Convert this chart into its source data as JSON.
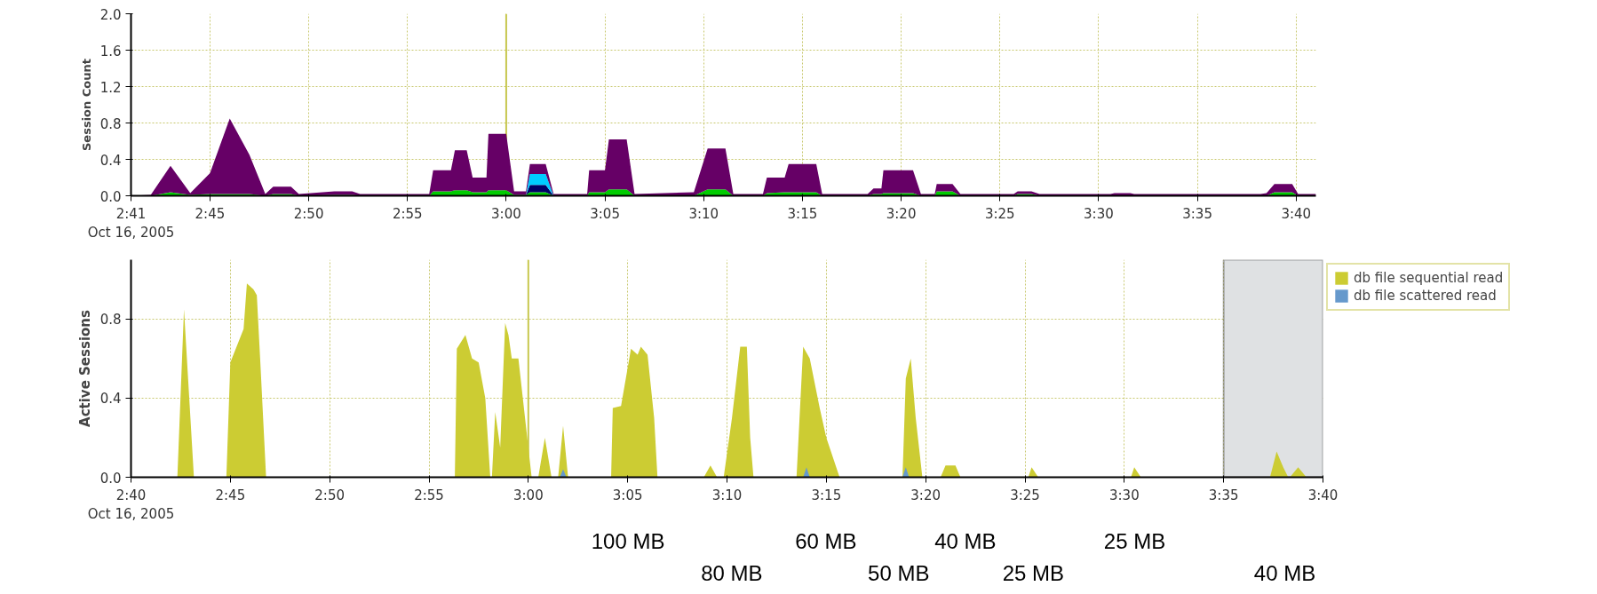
{
  "chart_data": [
    {
      "type": "area",
      "stacked": true,
      "ylabel": "Session Count",
      "grid": true,
      "legend": false,
      "xlim": [
        "2005-10-16T02:41:00",
        "2005-10-16T03:41:00"
      ],
      "xticks": [
        {
          "value": "2005-10-16T02:41:00",
          "label": "2:41\nOct 16, 2005"
        },
        {
          "value": "2005-10-16T02:45:00",
          "label": "2:45"
        },
        {
          "value": "2005-10-16T02:50:00",
          "label": "2:50"
        },
        {
          "value": "2005-10-16T02:55:00",
          "label": "2:55"
        },
        {
          "value": "2005-10-16T03:00:00",
          "label": "3:00"
        },
        {
          "value": "2005-10-16T03:05:00",
          "label": "3:05"
        },
        {
          "value": "2005-10-16T03:10:00",
          "label": "3:10"
        },
        {
          "value": "2005-10-16T03:15:00",
          "label": "3:15"
        },
        {
          "value": "2005-10-16T03:20:00",
          "label": "3:20"
        },
        {
          "value": "2005-10-16T03:25:00",
          "label": "3:25"
        },
        {
          "value": "2005-10-16T03:30:00",
          "label": "3:30"
        },
        {
          "value": "2005-10-16T03:35:00",
          "label": "3:35"
        },
        {
          "value": "2005-10-16T03:40:00",
          "label": "3:40"
        }
      ],
      "ylim": [
        0,
        2.0
      ],
      "yticks": [
        {
          "value": 0,
          "label": "0.0"
        },
        {
          "value": 0.4,
          "label": "0.4"
        },
        {
          "value": 0.8,
          "label": "0.8"
        },
        {
          "value": 1.2,
          "label": "1.2"
        },
        {
          "value": 1.6,
          "label": "1.6"
        },
        {
          "value": 2.0,
          "label": "2.0"
        }
      ],
      "ref_lines": [
        {
          "axis": "x",
          "value": "2005-10-16T03:00:00",
          "color": "#c8c850"
        }
      ],
      "x": [
        "2005-10-16T02:41:00",
        "2005-10-16T02:42:00",
        "2005-10-16T02:43:00",
        "2005-10-16T02:44:00",
        "2005-10-16T02:45:00",
        "2005-10-16T02:46:00",
        "2005-10-16T02:47:00",
        "2005-10-16T02:47:48",
        "2005-10-16T02:48:12",
        "2005-10-16T02:49:06",
        "2005-10-16T02:49:30",
        "2005-10-16T02:51:18",
        "2005-10-16T02:52:12",
        "2005-10-16T02:52:36",
        "2005-10-16T02:56:06",
        "2005-10-16T02:56:18",
        "2005-10-16T02:57:12",
        "2005-10-16T02:57:24",
        "2005-10-16T02:58:00",
        "2005-10-16T02:58:18",
        "2005-10-16T02:59:00",
        "2005-10-16T02:59:06",
        "2005-10-16T03:00:00",
        "2005-10-16T03:00:24",
        "2005-10-16T03:01:00",
        "2005-10-16T03:01:12",
        "2005-10-16T03:02:00",
        "2005-10-16T03:02:24",
        "2005-10-16T03:04:06",
        "2005-10-16T03:04:12",
        "2005-10-16T03:05:00",
        "2005-10-16T03:05:12",
        "2005-10-16T03:06:06",
        "2005-10-16T03:06:30",
        "2005-10-16T03:09:30",
        "2005-10-16T03:10:12",
        "2005-10-16T03:11:06",
        "2005-10-16T03:11:30",
        "2005-10-16T03:13:00",
        "2005-10-16T03:13:12",
        "2005-10-16T03:14:06",
        "2005-10-16T03:14:18",
        "2005-10-16T03:15:42",
        "2005-10-16T03:16:00",
        "2005-10-16T03:18:18",
        "2005-10-16T03:18:36",
        "2005-10-16T03:19:00",
        "2005-10-16T03:19:06",
        "2005-10-16T03:20:36",
        "2005-10-16T03:21:00",
        "2005-10-16T03:21:42",
        "2005-10-16T03:21:48",
        "2005-10-16T03:22:36",
        "2005-10-16T03:23:00",
        "2005-10-16T03:25:42",
        "2005-10-16T03:25:54",
        "2005-10-16T03:26:36",
        "2005-10-16T03:27:00",
        "2005-10-16T03:30:36",
        "2005-10-16T03:30:48",
        "2005-10-16T03:31:36",
        "2005-10-16T03:31:48",
        "2005-10-16T03:38:12",
        "2005-10-16T03:38:30",
        "2005-10-16T03:38:54",
        "2005-10-16T03:39:48",
        "2005-10-16T03:40:06",
        "2005-10-16T03:41:00"
      ],
      "series": [
        {
          "color": "#00cc00",
          "values": [
            0,
            0,
            0.04,
            0.01,
            0.02,
            0.02,
            0.02,
            0,
            0.02,
            0.02,
            0,
            0.01,
            0.01,
            0,
            0,
            0.05,
            0.05,
            0.06,
            0.06,
            0.04,
            0.04,
            0.06,
            0.06,
            0.01,
            0.01,
            0.04,
            0.04,
            0,
            0,
            0.04,
            0.04,
            0.07,
            0.07,
            0,
            0,
            0.07,
            0.07,
            0,
            0,
            0.03,
            0.04,
            0.04,
            0.04,
            0,
            0,
            0.02,
            0.02,
            0.03,
            0.03,
            0,
            0,
            0.05,
            0.05,
            0,
            0,
            0.02,
            0.02,
            0,
            0,
            0,
            0,
            0,
            0,
            0,
            0.04,
            0.04,
            0,
            0
          ]
        },
        {
          "color": "#000066",
          "values": [
            0,
            0,
            0,
            0,
            0,
            0,
            0,
            0,
            0,
            0,
            0,
            0,
            0,
            0,
            0,
            0,
            0,
            0,
            0,
            0,
            0,
            0,
            0,
            0,
            0,
            0.08,
            0.08,
            0,
            0,
            0,
            0,
            0,
            0,
            0,
            0,
            0,
            0,
            0,
            0,
            0,
            0,
            0,
            0,
            0,
            0,
            0,
            0,
            0,
            0,
            0,
            0,
            0,
            0,
            0,
            0,
            0,
            0,
            0,
            0,
            0,
            0,
            0,
            0,
            0,
            0,
            0,
            0,
            0
          ]
        },
        {
          "color": "#00ccff",
          "values": [
            0,
            0,
            0,
            0,
            0,
            0,
            0,
            0,
            0,
            0,
            0,
            0,
            0,
            0,
            0,
            0,
            0,
            0,
            0,
            0,
            0,
            0,
            0,
            0,
            0,
            0.12,
            0.12,
            0,
            0,
            0,
            0,
            0,
            0,
            0,
            0,
            0,
            0,
            0,
            0,
            0,
            0,
            0,
            0,
            0,
            0,
            0,
            0,
            0,
            0,
            0,
            0,
            0,
            0,
            0,
            0,
            0,
            0,
            0,
            0,
            0,
            0,
            0,
            0,
            0,
            0,
            0,
            0,
            0
          ]
        },
        {
          "color": "#660066",
          "values": [
            0,
            0.01,
            0.29,
            0.02,
            0.23,
            0.83,
            0.43,
            0.02,
            0.08,
            0.08,
            0.02,
            0.04,
            0.04,
            0.02,
            0.02,
            0.23,
            0.23,
            0.44,
            0.44,
            0.16,
            0.16,
            0.62,
            0.62,
            0.04,
            0.04,
            0.11,
            0.11,
            0.02,
            0.02,
            0.24,
            0.24,
            0.55,
            0.55,
            0.02,
            0.04,
            0.45,
            0.45,
            0.02,
            0.02,
            0.17,
            0.16,
            0.31,
            0.31,
            0.02,
            0.02,
            0.06,
            0.06,
            0.25,
            0.25,
            0.02,
            0.02,
            0.08,
            0.08,
            0.02,
            0.02,
            0.03,
            0.03,
            0.02,
            0.02,
            0.03,
            0.03,
            0.02,
            0.02,
            0.03,
            0.09,
            0.09,
            0.02,
            0.02
          ]
        }
      ]
    },
    {
      "type": "area",
      "ylabel": "Active Sessions",
      "grid": true,
      "legend": "right",
      "xlim": [
        "2005-10-16T02:40:00",
        "2005-10-16T03:40:00"
      ],
      "xticks": [
        {
          "value": "2005-10-16T02:40:00",
          "label": "2:40\nOct 16, 2005"
        },
        {
          "value": "2005-10-16T02:45:00",
          "label": "2:45"
        },
        {
          "value": "2005-10-16T02:50:00",
          "label": "2:50"
        },
        {
          "value": "2005-10-16T02:55:00",
          "label": "2:55"
        },
        {
          "value": "2005-10-16T03:00:00",
          "label": "3:00"
        },
        {
          "value": "2005-10-16T03:05:00",
          "label": "3:05"
        },
        {
          "value": "2005-10-16T03:10:00",
          "label": "3:10"
        },
        {
          "value": "2005-10-16T03:15:00",
          "label": "3:15"
        },
        {
          "value": "2005-10-16T03:20:00",
          "label": "3:20"
        },
        {
          "value": "2005-10-16T03:25:00",
          "label": "3:25"
        },
        {
          "value": "2005-10-16T03:30:00",
          "label": "3:30"
        },
        {
          "value": "2005-10-16T03:35:00",
          "label": "3:35"
        },
        {
          "value": "2005-10-16T03:40:00",
          "label": "3:40"
        }
      ],
      "ylim": [
        0,
        1.1
      ],
      "yticks": [
        {
          "value": 0,
          "label": "0.0"
        },
        {
          "value": 0.4,
          "label": "0.4"
        },
        {
          "value": 0.8,
          "label": "0.8"
        }
      ],
      "ref_lines": [
        {
          "axis": "x",
          "value": "2005-10-16T03:00:00",
          "color": "#c8c850"
        }
      ],
      "bands": [
        {
          "axis": "x",
          "from": "2005-10-16T03:35:00",
          "to": "2005-10-16T03:40:00",
          "color": "#dfe1e3"
        }
      ],
      "series": [
        {
          "name": "db file sequential read",
          "color": "#cccc33",
          "x": [
            "2005-10-16T02:40:00",
            "2005-10-16T02:42:20",
            "2005-10-16T02:42:40",
            "2005-10-16T02:43:10",
            "2005-10-16T02:44:48",
            "2005-10-16T02:45:00",
            "2005-10-16T02:45:40",
            "2005-10-16T02:45:50",
            "2005-10-16T02:46:10",
            "2005-10-16T02:46:20",
            "2005-10-16T02:46:30",
            "2005-10-16T02:46:48",
            "2005-10-16T02:56:18",
            "2005-10-16T02:56:24",
            "2005-10-16T02:56:50",
            "2005-10-16T02:57:10",
            "2005-10-16T02:57:30",
            "2005-10-16T02:57:50",
            "2005-10-16T02:58:05",
            "2005-10-16T02:58:10",
            "2005-10-16T02:58:20",
            "2005-10-16T02:58:35",
            "2005-10-16T02:58:50",
            "2005-10-16T02:59:00",
            "2005-10-16T02:59:10",
            "2005-10-16T02:59:30",
            "2005-10-16T02:59:50",
            "2005-10-16T03:00:10",
            "2005-10-16T03:00:30",
            "2005-10-16T03:00:50",
            "2005-10-16T03:01:10",
            "2005-10-16T03:01:30",
            "2005-10-16T03:01:45",
            "2005-10-16T03:02:00",
            "2005-10-16T03:04:10",
            "2005-10-16T03:04:15",
            "2005-10-16T03:04:40",
            "2005-10-16T03:05:10",
            "2005-10-16T03:05:30",
            "2005-10-16T03:05:40",
            "2005-10-16T03:06:00",
            "2005-10-16T03:06:20",
            "2005-10-16T03:06:30",
            "2005-10-16T03:08:50",
            "2005-10-16T03:09:10",
            "2005-10-16T03:09:30",
            "2005-10-16T03:09:50",
            "2005-10-16T03:10:15",
            "2005-10-16T03:10:40",
            "2005-10-16T03:11:00",
            "2005-10-16T03:11:10",
            "2005-10-16T03:11:20",
            "2005-10-16T03:13:30",
            "2005-10-16T03:13:50",
            "2005-10-16T03:14:10",
            "2005-10-16T03:14:40",
            "2005-10-16T03:15:00",
            "2005-10-16T03:15:40",
            "2005-10-16T03:18:50",
            "2005-10-16T03:19:00",
            "2005-10-16T03:19:15",
            "2005-10-16T03:19:30",
            "2005-10-16T03:19:50",
            "2005-10-16T03:20:45",
            "2005-10-16T03:21:00",
            "2005-10-16T03:21:30",
            "2005-10-16T03:21:45",
            "2005-10-16T03:25:10",
            "2005-10-16T03:25:20",
            "2005-10-16T03:25:40",
            "2005-10-16T03:30:20",
            "2005-10-16T03:30:30",
            "2005-10-16T03:30:50",
            "2005-10-16T03:37:20",
            "2005-10-16T03:37:40",
            "2005-10-16T03:38:00",
            "2005-10-16T03:38:15",
            "2005-10-16T03:38:20",
            "2005-10-16T03:38:45",
            "2005-10-16T03:39:10",
            "2005-10-16T03:40:00"
          ],
          "values": [
            0,
            0,
            0.85,
            0,
            0,
            0.58,
            0.75,
            0.98,
            0.95,
            0.92,
            0.6,
            0,
            0,
            0.65,
            0.72,
            0.6,
            0.58,
            0.4,
            0,
            0,
            0.33,
            0.15,
            0.78,
            0.72,
            0.6,
            0.6,
            0.3,
            0,
            0,
            0.2,
            0,
            0,
            0.26,
            0,
            0,
            0.35,
            0.36,
            0.65,
            0.62,
            0.66,
            0.62,
            0.3,
            0,
            0,
            0.06,
            0,
            0,
            0.3,
            0.66,
            0.66,
            0.2,
            0,
            0,
            0.66,
            0.6,
            0.35,
            0.2,
            0,
            0,
            0.5,
            0.6,
            0.3,
            0,
            0,
            0.06,
            0.06,
            0,
            0,
            0.05,
            0,
            0,
            0.05,
            0,
            0,
            0.13,
            0.05,
            0,
            0,
            0.05,
            0,
            0
          ]
        },
        {
          "name": "db file scattered read",
          "color": "#6699cc",
          "x": [
            "2005-10-16T02:40:00",
            "2005-10-16T03:01:35",
            "2005-10-16T03:01:45",
            "2005-10-16T03:01:55",
            "2005-10-16T03:13:50",
            "2005-10-16T03:14:00",
            "2005-10-16T03:14:10",
            "2005-10-16T03:18:50",
            "2005-10-16T03:19:00",
            "2005-10-16T03:19:10",
            "2005-10-16T03:40:00"
          ],
          "values": [
            0,
            0,
            0.04,
            0,
            0,
            0.05,
            0,
            0,
            0.05,
            0,
            0
          ]
        }
      ],
      "annotations": [
        "100 MB",
        "80 MB",
        "60 MB",
        "50 MB",
        "40 MB",
        "25 MB",
        "25 MB",
        "40 MB"
      ]
    }
  ]
}
